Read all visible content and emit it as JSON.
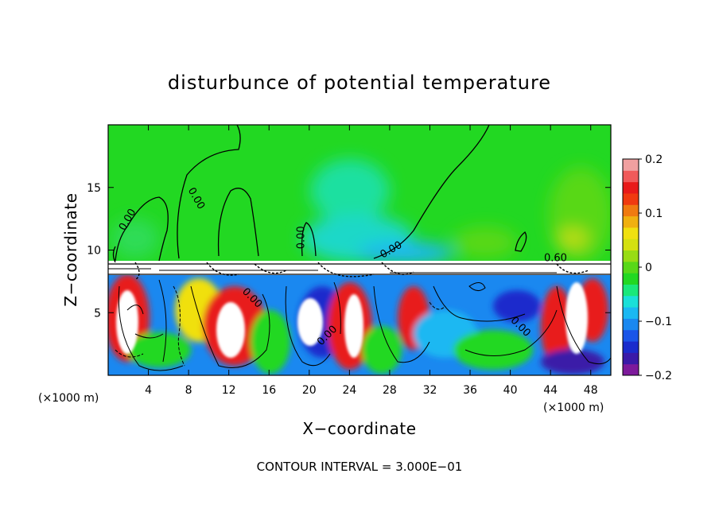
{
  "chart_data": {
    "type": "heatmap",
    "title": "disturbunce of potential temperature",
    "xlabel": "X−coordinate",
    "ylabel": "Z−coordinate",
    "x_unit_left": "(×1000 m)",
    "x_unit_right": "(×1000 m)",
    "xlim": [
      0,
      50
    ],
    "ylim": [
      0,
      20
    ],
    "x_ticks": [
      4,
      8,
      12,
      16,
      20,
      24,
      28,
      32,
      36,
      40,
      44,
      48
    ],
    "x_tick_labels": [
      "4",
      "8",
      "12",
      "16",
      "20",
      "24",
      "28",
      "32",
      "36",
      "40",
      "44",
      "48"
    ],
    "y_ticks": [
      5,
      10,
      15
    ],
    "y_tick_labels": [
      "5",
      "10",
      "15"
    ],
    "colorbar": {
      "range": [
        -0.2,
        0.2
      ],
      "ticks": [
        0.2,
        0.1,
        0,
        -0.1,
        -0.2
      ],
      "tick_labels": [
        "0.2",
        "0.1",
        "0",
        "−0.1",
        "−0.2"
      ],
      "colors": [
        "#7d1a9b",
        "#3a1aa8",
        "#1a2ccc",
        "#1a55e8",
        "#1a88f0",
        "#1ab8f2",
        "#1ae0d8",
        "#1ae87a",
        "#22d822",
        "#58d818",
        "#98dc14",
        "#d4e010",
        "#f0e010",
        "#f0b010",
        "#f07a10",
        "#f03a10",
        "#e81a1a",
        "#f05a5a",
        "#f0a0a0"
      ]
    },
    "contour_labels": [
      {
        "text": "0.00",
        "x": 2.2,
        "y": 12.3,
        "angle": -60
      },
      {
        "text": "0.00",
        "x": 8.5,
        "y": 14.0,
        "angle": 60
      },
      {
        "text": "0.00",
        "x": 19.5,
        "y": 11.0,
        "angle": -90
      },
      {
        "text": "0.00",
        "x": 28.3,
        "y": 9.8,
        "angle": -30
      },
      {
        "text": "0.60",
        "x": 44.5,
        "y": 9.1,
        "angle": 0
      },
      {
        "text": "0.00",
        "x": 14.1,
        "y": 6.0,
        "angle": 45
      },
      {
        "text": "0.00",
        "x": 22.0,
        "y": 3.0,
        "angle": -45
      },
      {
        "text": "0.00",
        "x": 40.8,
        "y": 3.7,
        "angle": 45
      }
    ],
    "footer": "CONTOUR INTERVAL = 3.000E−01"
  }
}
